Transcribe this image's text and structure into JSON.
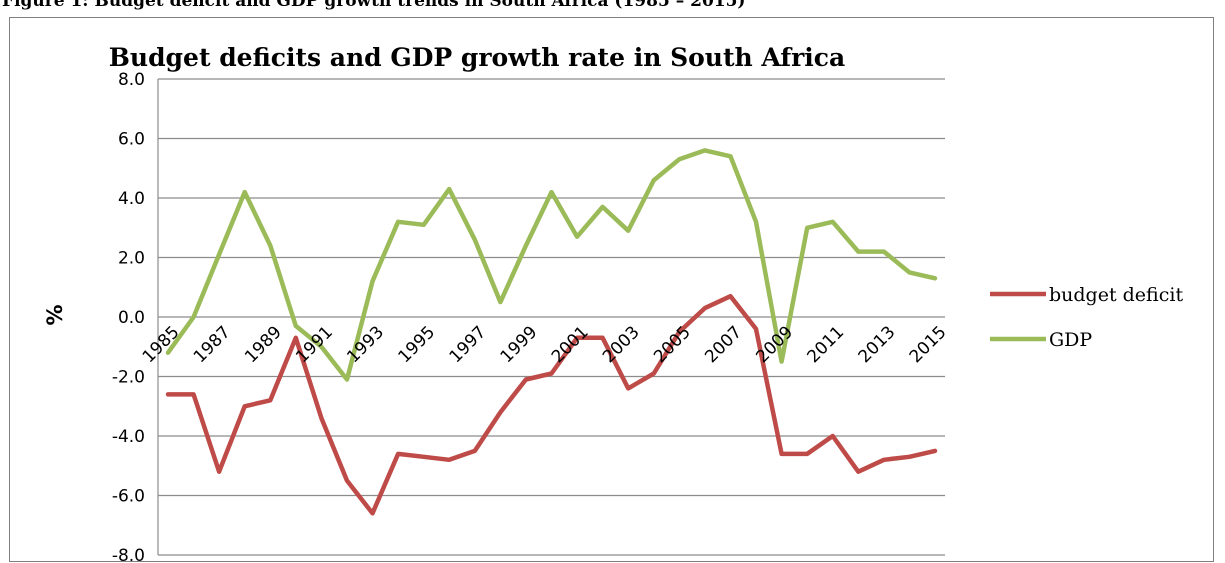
{
  "figure_caption": "Figure 1: Budget deficit and GDP growth trends in South Africa (1985 – 2015)",
  "chart_data": {
    "type": "line",
    "title": "Budget deficits and GDP growth rate in South Africa",
    "xlabel": "",
    "ylabel": "%",
    "ylim": [
      -8,
      8
    ],
    "ytick_step": 2,
    "ytick_format": "one-decimal",
    "grid": true,
    "legend_position": "right",
    "x": [
      1985,
      1986,
      1987,
      1988,
      1989,
      1990,
      1991,
      1992,
      1993,
      1994,
      1995,
      1996,
      1997,
      1998,
      1999,
      2000,
      2001,
      2002,
      2003,
      2004,
      2005,
      2006,
      2007,
      2008,
      2009,
      2010,
      2011,
      2012,
      2013,
      2014,
      2015
    ],
    "x_tick_labels": [
      "1985",
      "1987",
      "1989",
      "1991",
      "1993",
      "1995",
      "1997",
      "1999",
      "2001",
      "2003",
      "2005",
      "2007",
      "2009",
      "2011",
      "2013",
      "2015"
    ],
    "series": [
      {
        "name": "budget deficit",
        "color": "#be4b48",
        "values": [
          -2.6,
          -2.6,
          -5.2,
          -3.0,
          -2.8,
          -0.7,
          -3.4,
          -5.5,
          -6.6,
          -4.6,
          -4.7,
          -4.8,
          -4.5,
          -3.2,
          -2.1,
          -1.9,
          -0.7,
          -0.7,
          -2.4,
          -1.9,
          -0.5,
          0.3,
          0.7,
          -0.4,
          -4.6,
          -4.6,
          -4.0,
          -5.2,
          -4.8,
          -4.7,
          -4.5
        ]
      },
      {
        "name": "GDP",
        "color": "#9bbb59",
        "values": [
          -1.2,
          0.0,
          2.1,
          4.2,
          2.4,
          -0.3,
          -1.0,
          -2.1,
          1.2,
          3.2,
          3.1,
          4.3,
          2.6,
          0.5,
          2.4,
          4.2,
          2.7,
          3.7,
          2.9,
          4.6,
          5.3,
          5.6,
          5.4,
          3.2,
          -1.5,
          3.0,
          3.2,
          2.2,
          2.2,
          1.5,
          1.3
        ]
      }
    ]
  }
}
